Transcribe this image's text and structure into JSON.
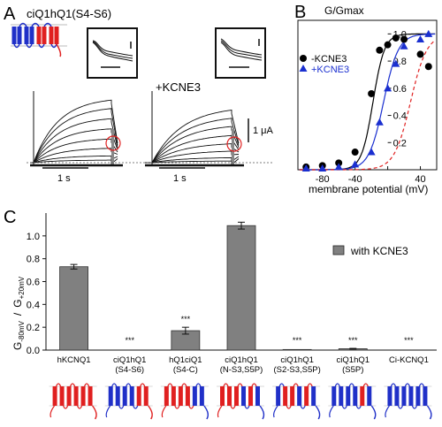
{
  "panel_a": {
    "letter": "A",
    "construct_label": "ciQ1hQ1(S4-S6)",
    "kcne3_label": "+KCNE3",
    "scale_current": "1 μA",
    "scale_time_left": "1 s",
    "scale_time_right": "1 s"
  },
  "colors": {
    "hkcnq1": "#e02020",
    "ci": "#2030c8",
    "bar": "#808080",
    "kcne3": "#1a2fd0",
    "control": "#000000",
    "ref": "#e02020"
  },
  "chart_data": [
    {
      "panel": "B",
      "type": "scatter",
      "ylabel_panel": "G/Gmax",
      "xlabel": "membrane potential (mV)",
      "x_ticks": [
        -80,
        -40,
        0,
        40
      ],
      "x_tick_labels": [
        "-80",
        "-40",
        "",
        "40"
      ],
      "y_ticks": [
        0.2,
        0.4,
        0.6,
        0.8,
        1.0
      ],
      "y_tick_labels": [
        "0.2",
        "0.4",
        "0.6",
        "0.8",
        "1.0"
      ],
      "xlim": [
        -110,
        60
      ],
      "ylim": [
        0,
        1.1
      ],
      "legend_position": "middle-left",
      "series": [
        {
          "name": "-KCNE3",
          "marker": "circle",
          "color": "#000000",
          "x": [
            -100,
            -80,
            -60,
            -40,
            -20,
            -10,
            0,
            10,
            20,
            40,
            50
          ],
          "y": [
            0.02,
            0.03,
            0.05,
            0.13,
            0.56,
            0.88,
            0.92,
            0.97,
            0.96,
            0.85,
            0.76
          ]
        },
        {
          "name": "+KCNE3",
          "marker": "triangle",
          "color": "#1a2fd0",
          "x": [
            -100,
            -80,
            -60,
            -40,
            -20,
            -10,
            0,
            10,
            20,
            40,
            50
          ],
          "y": [
            0.01,
            0.01,
            0.02,
            0.04,
            0.13,
            0.35,
            0.6,
            0.78,
            0.91,
            0.96,
            1.0
          ]
        }
      ],
      "fits": [
        {
          "series": "-KCNE3",
          "v_half": -18,
          "slope": 7,
          "color": "#000000",
          "style": "solid"
        },
        {
          "series": "+KCNE3",
          "v_half": -5,
          "slope": 9,
          "color": "#1a2fd0",
          "style": "solid"
        },
        {
          "series": "reference",
          "v_half": 28,
          "slope": 10,
          "color": "#e02020",
          "style": "dashed"
        }
      ]
    },
    {
      "panel": "C",
      "type": "bar",
      "ylabel_main": "G-80mV / G+20mV",
      "ylabel_parts": [
        "G",
        "-80mV",
        "/",
        "G",
        "+20mV"
      ],
      "ylim": [
        0,
        1.2
      ],
      "y_ticks": [
        0.0,
        0.2,
        0.4,
        0.6,
        0.8,
        1.0
      ],
      "y_tick_labels": [
        "0.0",
        "0.2",
        "0.4",
        "0.6",
        "0.8",
        "1.0"
      ],
      "legend": "with KCNE3",
      "categories": [
        [
          "hKCNQ1"
        ],
        [
          "ciQ1hQ1",
          "(S4-S6)"
        ],
        [
          "hQ1ciQ1",
          "(S4-C)"
        ],
        [
          "ciQ1hQ1",
          "(N-S3,S5P)"
        ],
        [
          "ciQ1hQ1",
          "(S2-S3,S5P)"
        ],
        [
          "ciQ1hQ1",
          "(S5P)"
        ],
        [
          "Ci-KCNQ1"
        ]
      ],
      "values": [
        0.73,
        0.0,
        0.17,
        1.09,
        0.005,
        0.012,
        0.0
      ],
      "errors": [
        0.02,
        0.0,
        0.03,
        0.03,
        0.0,
        0.003,
        0.0
      ],
      "significance": [
        "",
        "***",
        "***",
        "",
        "***",
        "***",
        "***"
      ]
    }
  ]
}
